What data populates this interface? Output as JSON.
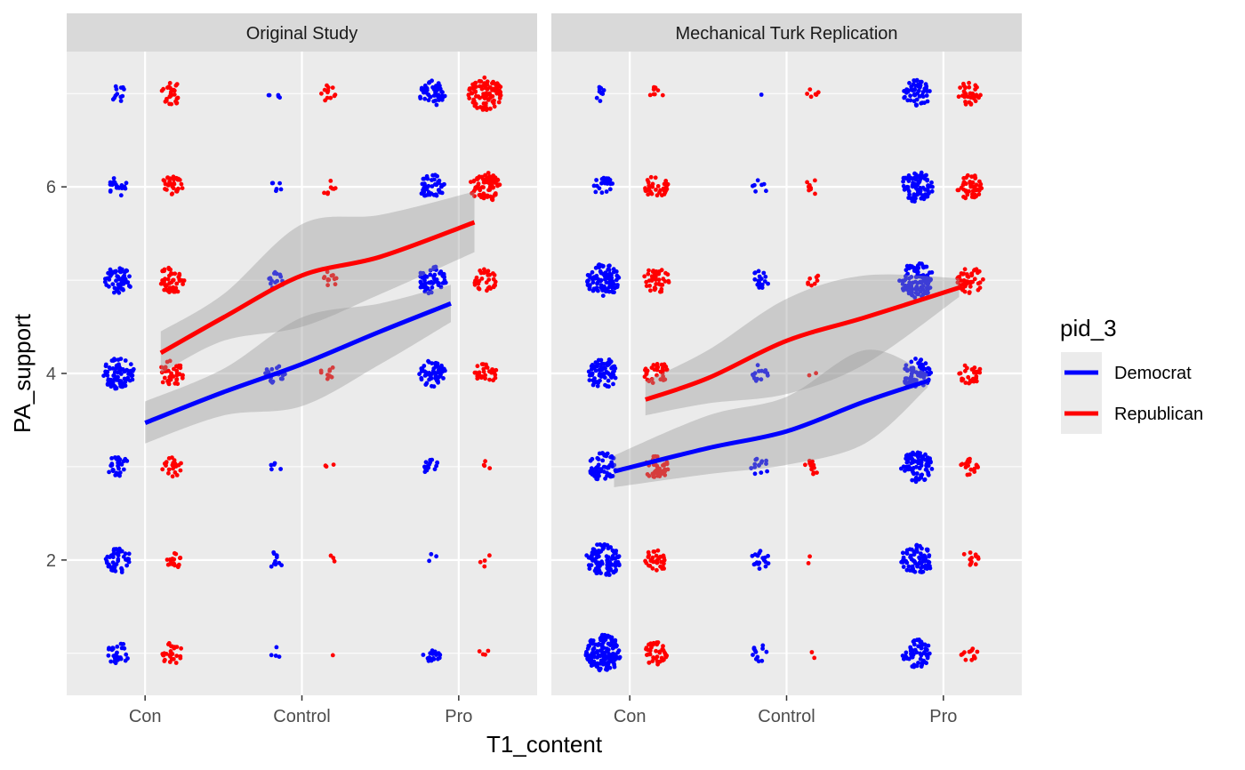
{
  "chart_data": {
    "type": "scatter",
    "xlabel": "T1_content",
    "ylabel": "PA_support",
    "categories": [
      "Con",
      "Control",
      "Pro"
    ],
    "y_ticks": [
      2,
      4,
      6
    ],
    "ylim": [
      0.55,
      7.45
    ],
    "grid": true,
    "legend": {
      "title": "pid_3",
      "placement": "right",
      "entries": [
        {
          "name": "Democrat",
          "color": "#0000FF"
        },
        {
          "name": "Republican",
          "color": "#FF0000"
        }
      ]
    },
    "colors": {
      "Democrat": "#0000FF",
      "Republican": "#FF0000",
      "panel_bg": "#EBEBEB",
      "strip_bg": "#D9D9D9",
      "ribbon": "#999999"
    },
    "panels": [
      {
        "title": "Original Study",
        "points": {
          "Democrat": {
            "Con": {
              "1": 30,
              "2": 45,
              "3": 28,
              "4": 80,
              "5": 55,
              "6": 20,
              "7": 12
            },
            "Control": {
              "1": 4,
              "2": 10,
              "3": 5,
              "4": 20,
              "5": 14,
              "6": 6,
              "7": 5
            },
            "Pro": {
              "1": 18,
              "2": 3,
              "3": 15,
              "4": 55,
              "5": 60,
              "6": 45,
              "7": 50
            }
          },
          "Republican": {
            "Con": {
              "1": 28,
              "2": 20,
              "3": 22,
              "4": 45,
              "5": 55,
              "6": 32,
              "7": 28
            },
            "Control": {
              "1": 1,
              "2": 3,
              "3": 3,
              "4": 10,
              "5": 12,
              "6": 8,
              "7": 12
            },
            "Pro": {
              "1": 4,
              "2": 4,
              "3": 4,
              "4": 30,
              "5": 35,
              "6": 75,
              "7": 95
            }
          }
        },
        "smooth": {
          "Democrat": {
            "x": [
              1.0,
              1.5,
              2.0,
              2.5,
              2.95
            ],
            "y": [
              3.47,
              3.8,
              4.1,
              4.45,
              4.75
            ],
            "se_upper": [
              3.7,
              4.05,
              4.6,
              4.75,
              4.95
            ],
            "se_lower": [
              3.25,
              3.55,
              3.65,
              4.1,
              4.55
            ]
          },
          "Republican": {
            "x": [
              1.1,
              1.5,
              2.0,
              2.5,
              3.1
            ],
            "y": [
              4.22,
              4.6,
              5.05,
              5.25,
              5.62
            ],
            "se_upper": [
              4.45,
              4.85,
              5.6,
              5.7,
              5.95
            ],
            "se_lower": [
              4.0,
              4.35,
              4.5,
              4.85,
              5.3
            ]
          }
        }
      },
      {
        "title": "Mechanical Turk Replication",
        "points": {
          "Democrat": {
            "Con": {
              "1": 140,
              "2": 100,
              "3": 60,
              "4": 75,
              "5": 90,
              "6": 22,
              "7": 10
            },
            "Control": {
              "1": 12,
              "2": 18,
              "3": 14,
              "4": 14,
              "5": 18,
              "6": 7,
              "7": 1
            },
            "Pro": {
              "1": 60,
              "2": 80,
              "3": 80,
              "4": 70,
              "5": 110,
              "6": 85,
              "7": 55
            }
          },
          "Republican": {
            "Con": {
              "1": 40,
              "2": 32,
              "3": 40,
              "4": 38,
              "5": 45,
              "6": 35,
              "7": 8
            },
            "Control": {
              "1": 2,
              "2": 2,
              "3": 12,
              "4": 2,
              "5": 8,
              "6": 8,
              "7": 6
            },
            "Pro": {
              "1": 14,
              "2": 12,
              "3": 18,
              "4": 28,
              "5": 50,
              "6": 45,
              "7": 35
            }
          }
        },
        "smooth": {
          "Democrat": {
            "x": [
              0.9,
              1.5,
              2.0,
              2.5,
              2.9
            ],
            "y": [
              2.95,
              3.2,
              3.38,
              3.7,
              3.92
            ],
            "se_upper": [
              3.12,
              3.55,
              3.75,
              4.25,
              4.0
            ],
            "se_lower": [
              2.78,
              2.92,
              3.02,
              3.25,
              3.85
            ]
          },
          "Republican": {
            "x": [
              1.1,
              1.5,
              2.0,
              2.5,
              3.1
            ],
            "y": [
              3.72,
              3.95,
              4.35,
              4.6,
              4.92
            ],
            "se_upper": [
              3.92,
              4.25,
              4.8,
              5.05,
              5.02
            ],
            "se_lower": [
              3.55,
              3.68,
              3.78,
              4.1,
              4.82
            ]
          }
        }
      }
    ]
  }
}
